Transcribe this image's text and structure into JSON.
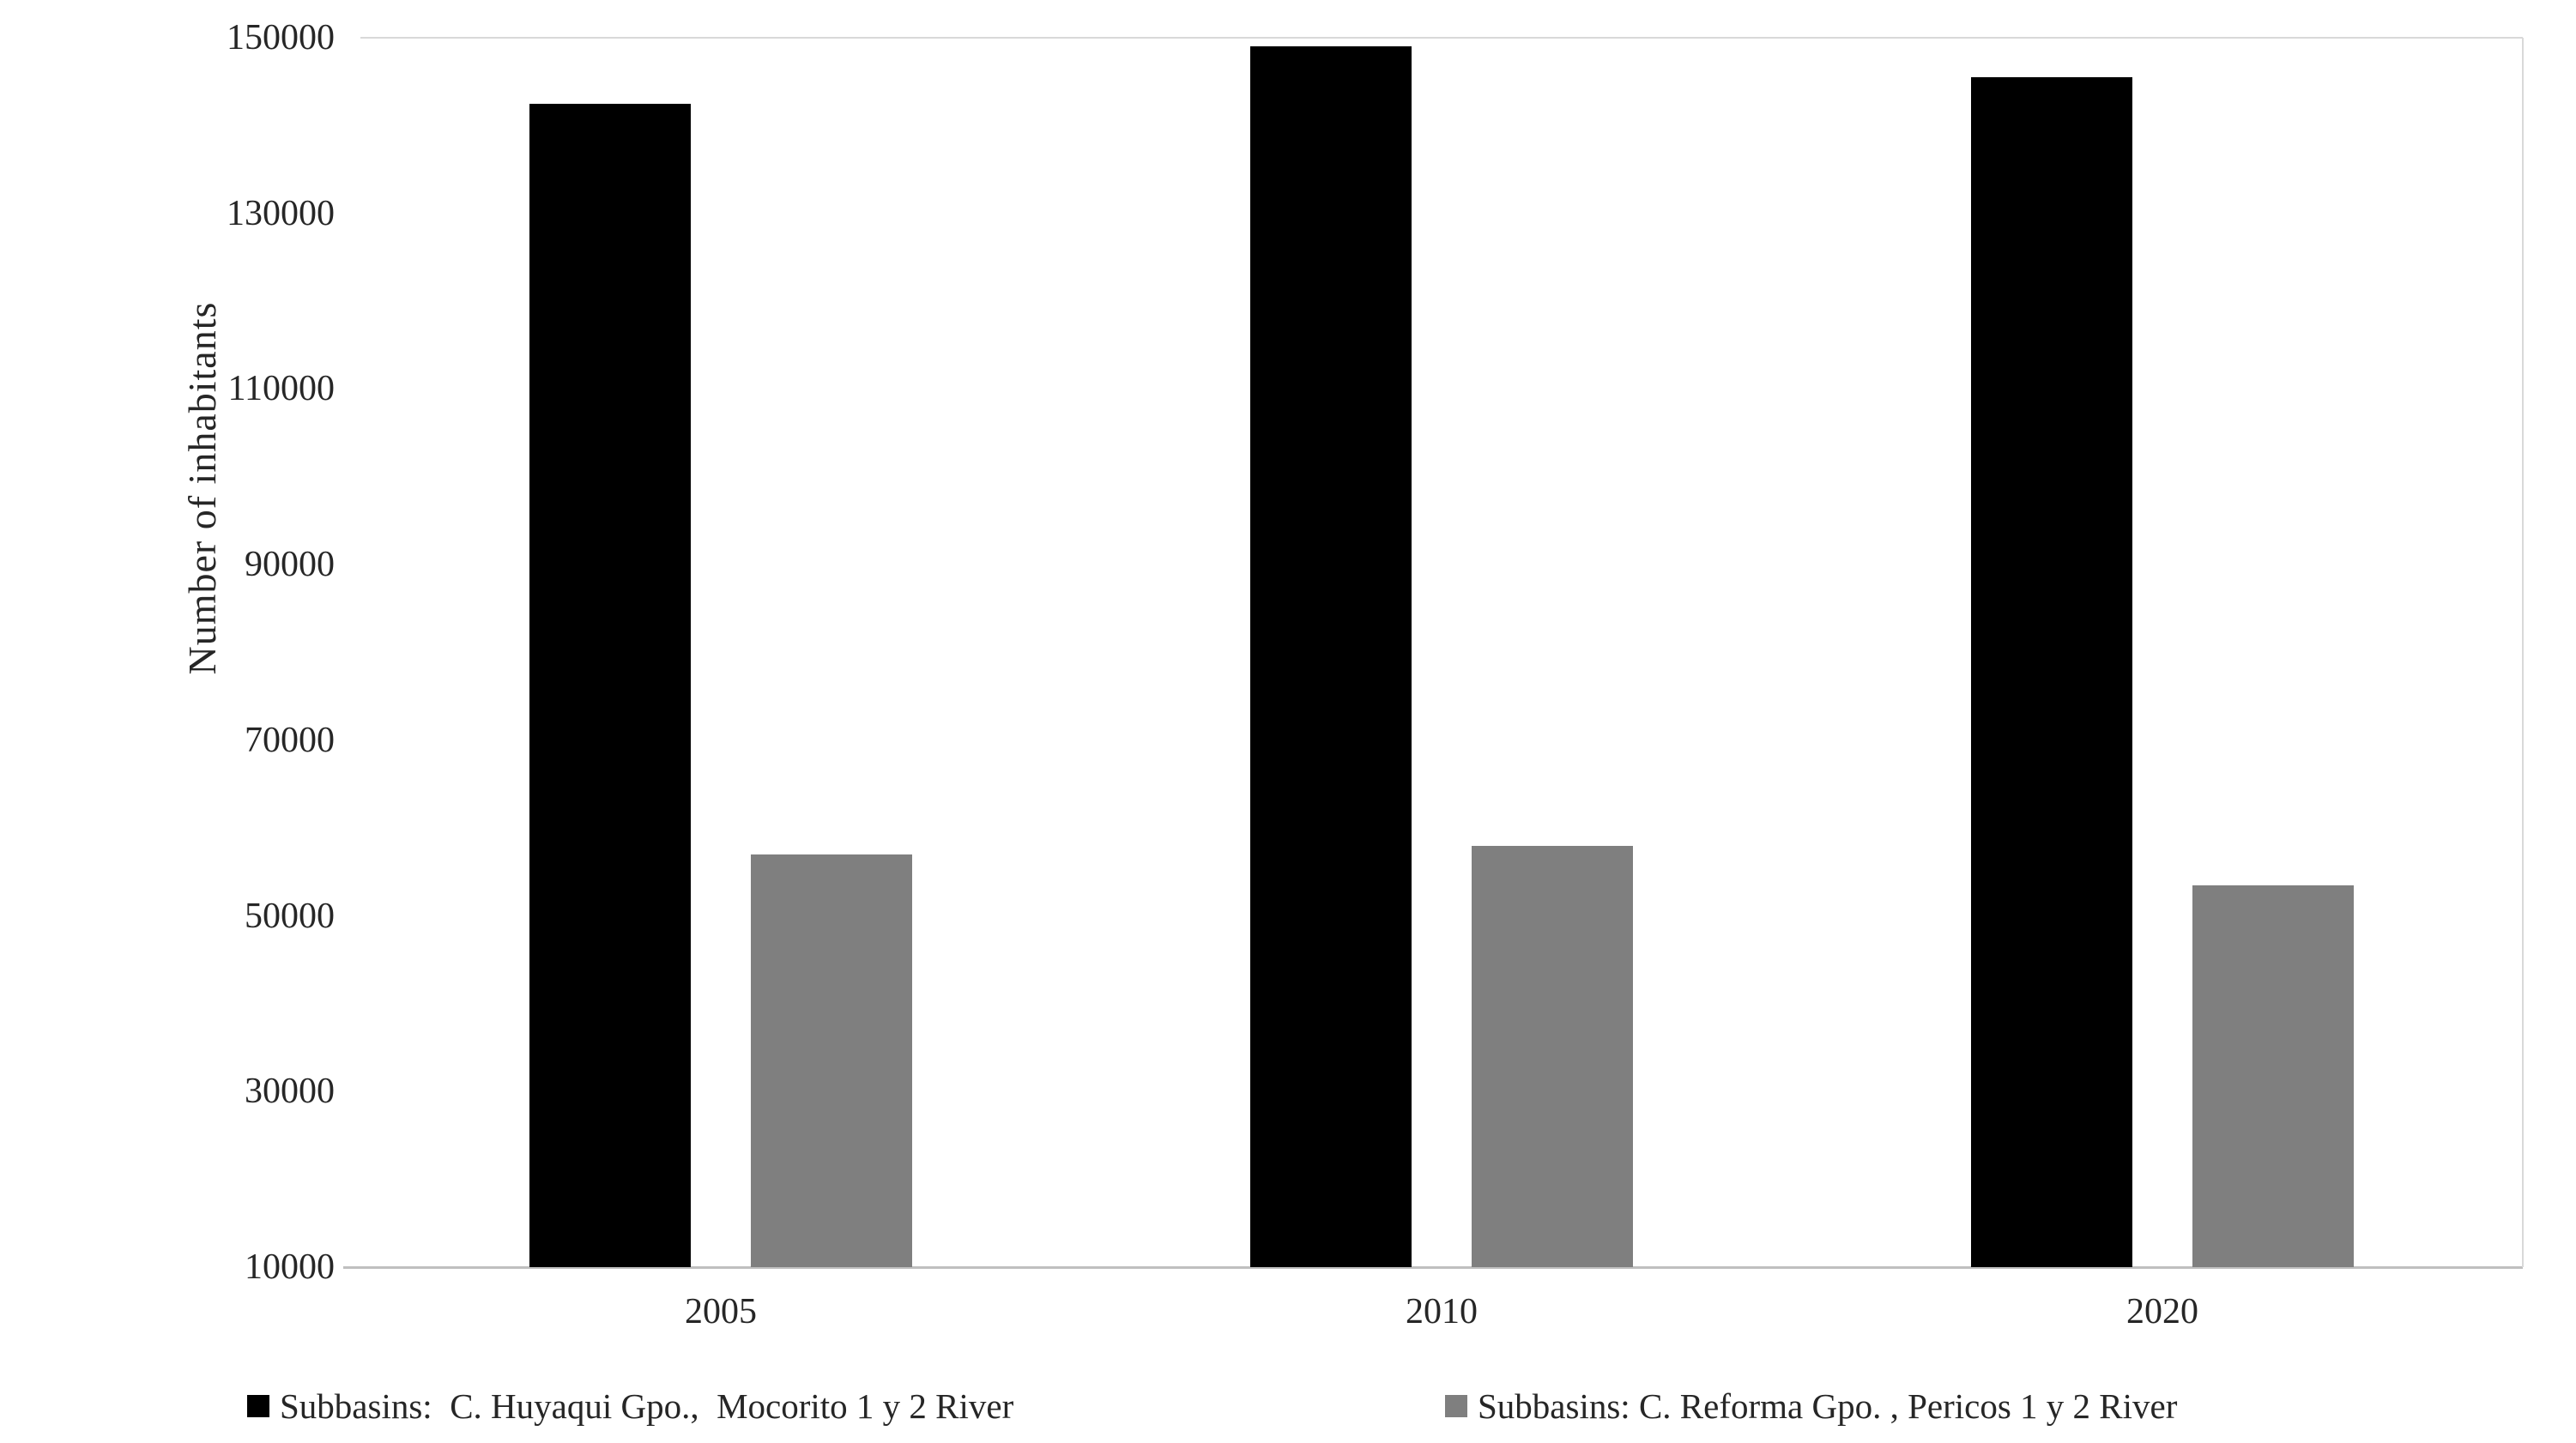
{
  "chart_data": {
    "type": "bar",
    "categories": [
      "2005",
      "2010",
      "2020"
    ],
    "series": [
      {
        "name": "Subbasins:  C. Huyaqui Gpo.,  Mocorito 1 y 2 River",
        "color": "#000000",
        "values": [
          142500,
          149000,
          145500
        ]
      },
      {
        "name": "Subbasins: C. Reforma Gpo. , Pericos 1 y 2 River",
        "color": "#7f7f7f",
        "values": [
          57000,
          58000,
          53500
        ]
      }
    ],
    "title": "",
    "xlabel": "",
    "ylabel": "Number of inhabitants",
    "ylim": [
      10000,
      150000
    ],
    "yticks": [
      10000,
      30000,
      50000,
      70000,
      90000,
      110000,
      130000,
      150000
    ],
    "grid": false,
    "legend_position": "bottom"
  },
  "colors": {
    "background": "#ffffff",
    "text": "#262626",
    "gridline": "#d9d9d9",
    "axis_line": "#bfbfbf"
  }
}
